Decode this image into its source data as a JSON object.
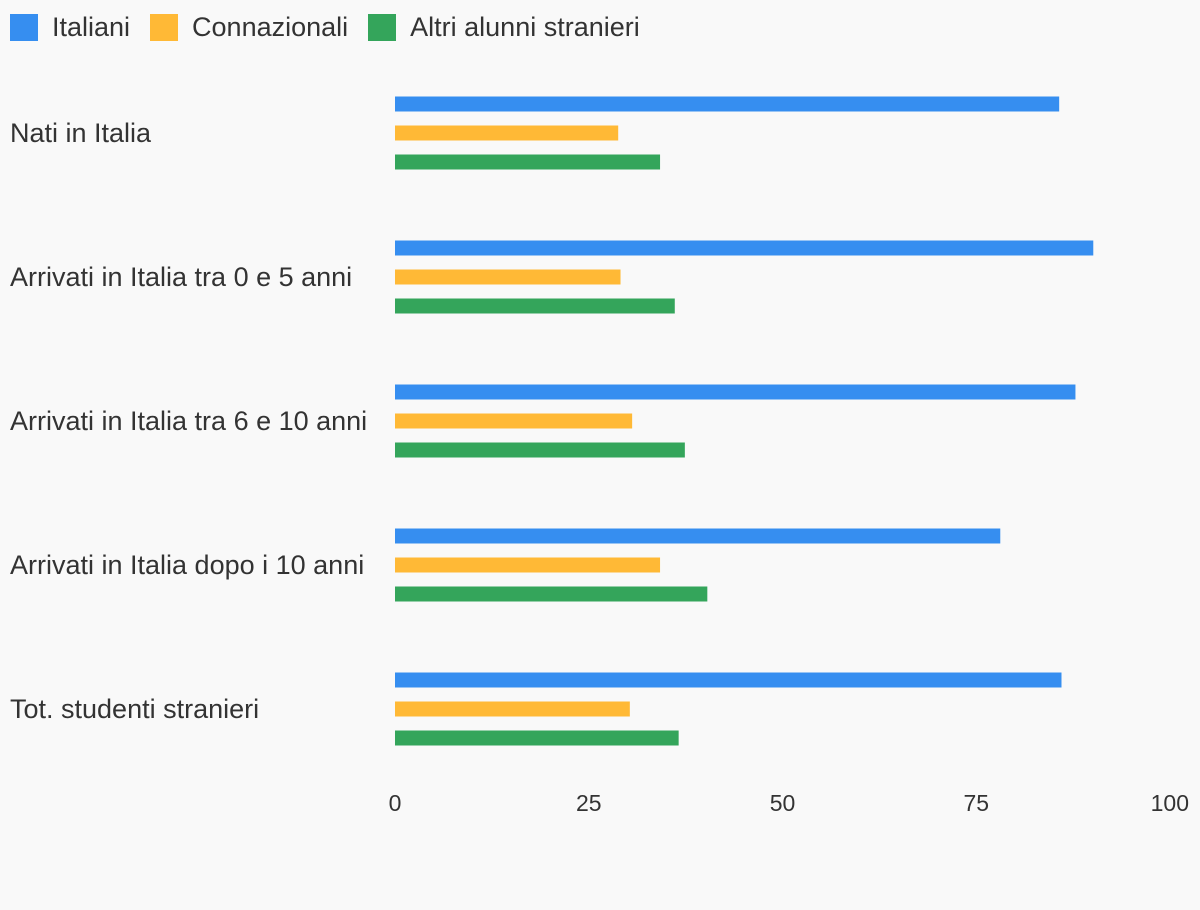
{
  "chart_data": {
    "type": "bar",
    "orientation": "horizontal",
    "categories": [
      "Nati in Italia",
      "Arrivati in Italia tra 0 e 5 anni",
      "Arrivati in Italia tra 6 e 10 anni",
      "Arrivati in Italia dopo i 10 anni",
      "Tot. studenti stranieri"
    ],
    "series": [
      {
        "name": "Italiani",
        "color": "#368ef0",
        "values": [
          85.7,
          90.1,
          87.8,
          78.1,
          86.0
        ]
      },
      {
        "name": "Connazionali",
        "color": "#ffb936",
        "values": [
          28.8,
          29.1,
          30.6,
          34.2,
          30.3
        ]
      },
      {
        "name": "Altri alunni stranieri",
        "color": "#34a55b",
        "values": [
          34.2,
          36.1,
          37.4,
          40.3,
          36.6
        ]
      }
    ],
    "xlim": [
      0,
      100
    ],
    "ticks": [
      0,
      25,
      50,
      75,
      100
    ],
    "title": "",
    "xlabel": "",
    "ylabel": "",
    "legend_position": "top-left",
    "grid": false
  }
}
